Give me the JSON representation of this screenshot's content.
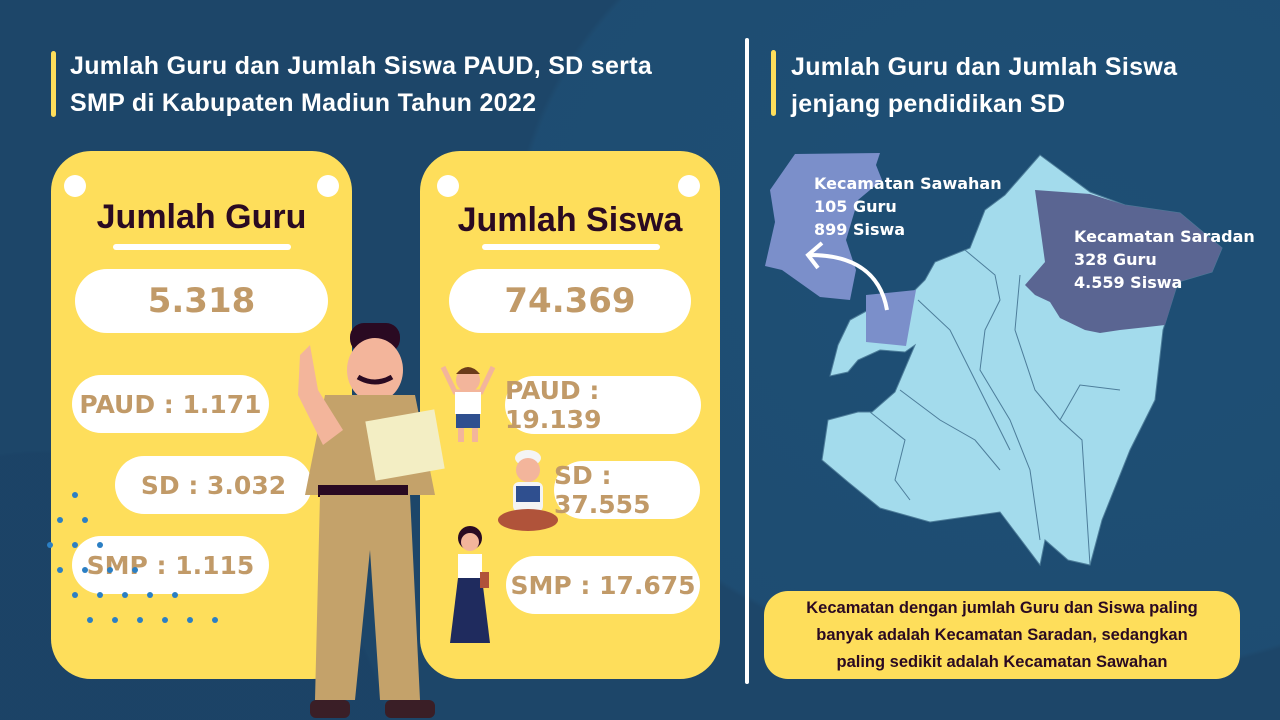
{
  "left": {
    "title_line1": "Jumlah Guru dan Jumlah Siswa PAUD, SD serta",
    "title_line2": "SMP di Kabupaten Madiun Tahun 2022",
    "guru": {
      "heading": "Jumlah Guru",
      "total": "5.318",
      "paud": "PAUD : 1.171",
      "sd": "SD : 3.032",
      "smp": "SMP : 1.115"
    },
    "siswa": {
      "heading": "Jumlah Siswa",
      "total": "74.369",
      "paud": "PAUD : 19.139",
      "sd": "SD : 37.555",
      "smp": "SMP : 17.675"
    }
  },
  "right": {
    "title_line1": "Jumlah Guru dan Jumlah Siswa",
    "title_line2": "jenjang pendidikan SD",
    "sawahan": {
      "name": "Kecamatan Sawahan",
      "guru": "105 Guru",
      "siswa": "899 Siswa"
    },
    "saradan": {
      "name": "Kecamatan Saradan",
      "guru": "328 Guru",
      "siswa": "4.559 Siswa"
    },
    "note_line1": "Kecamatan dengan jumlah Guru dan Siswa paling",
    "note_line2": "banyak adalah Kecamatan Saradan, sedangkan",
    "note_line3": "paling sedikit adalah Kecamatan Sawahan"
  },
  "colors": {
    "background": "#1d4669",
    "accent": "#fede5b",
    "number": "#c19a68",
    "map": "#a3dbec",
    "sawahan": "#7b8fca",
    "saradan": "#5a6592"
  }
}
